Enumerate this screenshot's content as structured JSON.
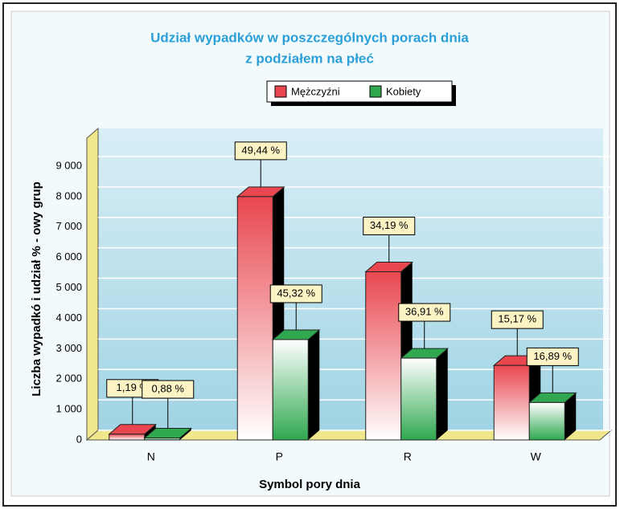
{
  "chart_data": {
    "type": "bar",
    "title": "Udział wypadków w poszczególnych porach dnia",
    "subtitle": "z podziałem na płeć",
    "y_label": "Liczba wypadkó i udział % - owy grup",
    "x_label": "Symbol pory dnia",
    "categories": [
      "N",
      "P",
      "R",
      "W"
    ],
    "series": [
      {
        "name": "Mężczyźni",
        "color": "#e8474f",
        "values": [
          190,
          8000,
          5530,
          2450
        ],
        "value_labels": [
          "1,19 %",
          "49,44 %",
          "34,19 %",
          "15,17 %"
        ]
      },
      {
        "name": "Kobiety",
        "color": "#2fa84f",
        "values": [
          65,
          3300,
          2690,
          1230
        ],
        "value_labels": [
          "0,88 %",
          "45,32 %",
          "36,91 %",
          "16,89 %"
        ]
      }
    ],
    "ylim": [
      0,
      9000
    ],
    "yticks": [
      0,
      {
        "value": 1000,
        "label": "1 000"
      },
      {
        "value": 2000,
        "label": "2 000"
      },
      {
        "value": 3000,
        "label": "3 000"
      },
      {
        "value": 4000,
        "label": "4 000"
      },
      {
        "value": 5000,
        "label": "5 000"
      },
      {
        "value": 6000,
        "label": "6 000"
      },
      {
        "value": 7000,
        "label": "7 000"
      },
      {
        "value": 8000,
        "label": "8 000"
      },
      {
        "value": 9000,
        "label": "9 000"
      }
    ],
    "grid": true
  }
}
